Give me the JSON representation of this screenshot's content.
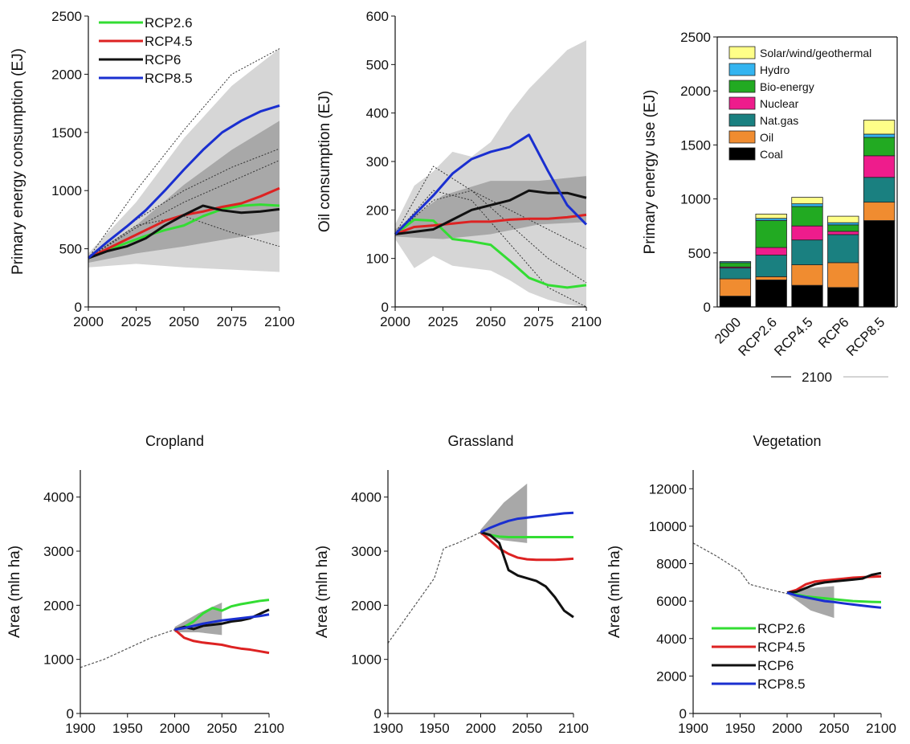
{
  "colors": {
    "RCP2.6": "#33dd33",
    "RCP4.5": "#dd2222",
    "RCP6": "#111111",
    "RCP8.5": "#1a2fd0",
    "band_light": "#d6d6d6",
    "band_dark": "#a8a8a8",
    "historical": "#555555"
  },
  "chart_data": [
    {
      "id": "primary_energy",
      "type": "line",
      "title": "",
      "xlabel": "",
      "ylabel": "Primary energy consumption (EJ)",
      "xlim": [
        2000,
        2100
      ],
      "ylim": [
        0,
        2500
      ],
      "xticks": [
        2000,
        2025,
        2050,
        2075,
        2100
      ],
      "yticks": [
        0,
        500,
        1000,
        1500,
        2000,
        2500
      ],
      "legend": "top-left",
      "series": [
        {
          "name": "RCP2.6",
          "x": [
            2000,
            2010,
            2020,
            2030,
            2040,
            2050,
            2060,
            2070,
            2080,
            2090,
            2100
          ],
          "y": [
            420,
            490,
            550,
            610,
            660,
            700,
            780,
            840,
            870,
            880,
            870
          ]
        },
        {
          "name": "RCP4.5",
          "x": [
            2000,
            2010,
            2020,
            2030,
            2040,
            2050,
            2060,
            2070,
            2080,
            2090,
            2100
          ],
          "y": [
            420,
            500,
            580,
            660,
            740,
            790,
            820,
            860,
            890,
            950,
            1020
          ]
        },
        {
          "name": "RCP6",
          "x": [
            2000,
            2010,
            2020,
            2030,
            2040,
            2050,
            2060,
            2070,
            2080,
            2090,
            2100
          ],
          "y": [
            420,
            480,
            520,
            590,
            700,
            790,
            870,
            830,
            810,
            820,
            840
          ]
        },
        {
          "name": "RCP8.5",
          "x": [
            2000,
            2010,
            2020,
            2030,
            2040,
            2050,
            2060,
            2070,
            2080,
            2090,
            2100
          ],
          "y": [
            420,
            560,
            690,
            830,
            1000,
            1180,
            1350,
            1500,
            1600,
            1680,
            1730
          ]
        }
      ],
      "band_light": {
        "x": [
          2000,
          2025,
          2050,
          2075,
          2100
        ],
        "lower": [
          340,
          370,
          340,
          320,
          300
        ],
        "upper": [
          460,
          900,
          1450,
          1900,
          2220
        ]
      },
      "band_dark": {
        "x": [
          2000,
          2025,
          2050,
          2075,
          2100
        ],
        "lower": [
          380,
          460,
          520,
          590,
          650
        ],
        "upper": [
          440,
          700,
          1050,
          1350,
          1600
        ]
      },
      "dotted": [
        {
          "x": [
            2000,
            2025,
            2050,
            2075,
            2100
          ],
          "y": [
            420,
            1000,
            1520,
            2000,
            2220
          ]
        },
        {
          "x": [
            2000,
            2025,
            2050,
            2075,
            2100
          ],
          "y": [
            420,
            750,
            1000,
            1200,
            1360
          ]
        },
        {
          "x": [
            2000,
            2025,
            2050,
            2075,
            2100
          ],
          "y": [
            420,
            700,
            780,
            640,
            520
          ]
        },
        {
          "x": [
            2000,
            2025,
            2050,
            2075,
            2100
          ],
          "y": [
            420,
            680,
            900,
            1080,
            1260
          ]
        }
      ]
    },
    {
      "id": "oil",
      "type": "line",
      "title": "",
      "xlabel": "",
      "ylabel": "Oil consumption (EJ)",
      "xlim": [
        2000,
        2100
      ],
      "ylim": [
        0,
        600
      ],
      "xticks": [
        2000,
        2025,
        2050,
        2075,
        2100
      ],
      "yticks": [
        0,
        100,
        200,
        300,
        400,
        500,
        600
      ],
      "series": [
        {
          "name": "RCP2.6",
          "x": [
            2000,
            2010,
            2020,
            2030,
            2040,
            2050,
            2060,
            2070,
            2080,
            2090,
            2100
          ],
          "y": [
            150,
            180,
            178,
            140,
            135,
            128,
            95,
            60,
            45,
            40,
            45
          ]
        },
        {
          "name": "RCP4.5",
          "x": [
            2000,
            2010,
            2020,
            2030,
            2040,
            2050,
            2060,
            2070,
            2080,
            2090,
            2100
          ],
          "y": [
            150,
            165,
            168,
            172,
            176,
            176,
            180,
            182,
            182,
            185,
            190
          ]
        },
        {
          "name": "RCP6",
          "x": [
            2000,
            2010,
            2020,
            2030,
            2040,
            2050,
            2060,
            2070,
            2080,
            2090,
            2100
          ],
          "y": [
            150,
            155,
            160,
            180,
            200,
            210,
            220,
            240,
            235,
            235,
            225
          ]
        },
        {
          "name": "RCP8.5",
          "x": [
            2000,
            2010,
            2020,
            2030,
            2040,
            2050,
            2060,
            2070,
            2080,
            2090,
            2100
          ],
          "y": [
            150,
            190,
            230,
            275,
            305,
            320,
            330,
            355,
            280,
            210,
            170
          ]
        }
      ],
      "band_light": {
        "x": [
          2000,
          2010,
          2020,
          2030,
          2040,
          2050,
          2060,
          2070,
          2080,
          2090,
          2100
        ],
        "lower": [
          140,
          80,
          105,
          85,
          80,
          75,
          55,
          30,
          15,
          5,
          0
        ],
        "upper": [
          170,
          250,
          280,
          320,
          310,
          340,
          400,
          450,
          490,
          530,
          550
        ]
      },
      "band_dark": {
        "x": [
          2000,
          2025,
          2050,
          2075,
          2100
        ],
        "lower": [
          145,
          140,
          150,
          170,
          175
        ],
        "upper": [
          160,
          230,
          260,
          260,
          270
        ]
      },
      "dotted": [
        {
          "x": [
            2000,
            2020,
            2040,
            2060,
            2080,
            2100
          ],
          "y": [
            150,
            290,
            240,
            170,
            100,
            50
          ]
        },
        {
          "x": [
            2000,
            2020,
            2040,
            2060,
            2080,
            2100
          ],
          "y": [
            150,
            240,
            220,
            130,
            40,
            0
          ]
        },
        {
          "x": [
            2000,
            2020,
            2040,
            2060,
            2080,
            2100
          ],
          "y": [
            150,
            220,
            240,
            200,
            160,
            120
          ]
        }
      ]
    },
    {
      "id": "primary_energy_mix",
      "type": "bar",
      "stacked": true,
      "title": "",
      "xlabel": "2100",
      "ylabel": "Primary energy use (EJ)",
      "ylim": [
        0,
        2500
      ],
      "yticks": [
        0,
        500,
        1000,
        1500,
        2000,
        2500
      ],
      "categories": [
        "2000",
        "RCP2.6",
        "RCP4.5",
        "RCP6",
        "RCP8.5"
      ],
      "legend": "top-right",
      "series": [
        {
          "name": "Coal",
          "color": "#000000",
          "values": [
            100,
            250,
            200,
            180,
            800
          ]
        },
        {
          "name": "Oil",
          "color": "#f08c30",
          "values": [
            160,
            30,
            190,
            230,
            170
          ]
        },
        {
          "name": "Nat.gas",
          "color": "#1a8080",
          "values": [
            100,
            200,
            230,
            260,
            230
          ]
        },
        {
          "name": "Nuclear",
          "color": "#ee1c8c",
          "values": [
            10,
            70,
            130,
            30,
            200
          ]
        },
        {
          "name": "Bio-energy",
          "color": "#22aa22",
          "values": [
            40,
            250,
            180,
            60,
            170
          ]
        },
        {
          "name": "Hydro",
          "color": "#33b4f0",
          "values": [
            10,
            20,
            25,
            20,
            30
          ]
        },
        {
          "name": "Solar/wind/geothermal",
          "color": "#ffff88",
          "values": [
            0,
            40,
            60,
            60,
            130
          ]
        }
      ]
    },
    {
      "id": "cropland",
      "type": "line",
      "title": "Cropland",
      "xlabel": "",
      "ylabel": "Area (mln ha)",
      "xlim": [
        1900,
        2100
      ],
      "ylim": [
        0,
        4500
      ],
      "xticks": [
        1900,
        1950,
        2000,
        2050,
        2100
      ],
      "yticks": [
        0,
        1000,
        2000,
        3000,
        4000
      ],
      "historical": {
        "x": [
          1900,
          1925,
          1950,
          1975,
          2000
        ],
        "y": [
          850,
          1000,
          1200,
          1400,
          1550
        ]
      },
      "series": [
        {
          "name": "RCP2.6",
          "x": [
            2000,
            2010,
            2020,
            2030,
            2040,
            2050,
            2060,
            2070,
            2080,
            2090,
            2100
          ],
          "y": [
            1550,
            1600,
            1700,
            1850,
            1950,
            1900,
            1980,
            2020,
            2050,
            2080,
            2100
          ]
        },
        {
          "name": "RCP4.5",
          "x": [
            2000,
            2010,
            2020,
            2030,
            2040,
            2050,
            2060,
            2070,
            2080,
            2090,
            2100
          ],
          "y": [
            1550,
            1400,
            1340,
            1310,
            1290,
            1270,
            1230,
            1200,
            1180,
            1150,
            1120
          ]
        },
        {
          "name": "RCP6",
          "x": [
            2000,
            2010,
            2020,
            2030,
            2040,
            2050,
            2060,
            2070,
            2080,
            2090,
            2100
          ],
          "y": [
            1550,
            1600,
            1560,
            1620,
            1640,
            1660,
            1700,
            1720,
            1760,
            1840,
            1920
          ]
        },
        {
          "name": "RCP8.5",
          "x": [
            2000,
            2010,
            2020,
            2030,
            2040,
            2050,
            2060,
            2070,
            2080,
            2090,
            2100
          ],
          "y": [
            1550,
            1580,
            1620,
            1660,
            1690,
            1720,
            1740,
            1760,
            1780,
            1800,
            1830
          ]
        }
      ],
      "band": {
        "x": [
          2000,
          2025,
          2050
        ],
        "lower": [
          1500,
          1500,
          1450
        ],
        "upper": [
          1600,
          1850,
          2050
        ]
      }
    },
    {
      "id": "grassland",
      "type": "line",
      "title": "Grassland",
      "xlabel": "",
      "ylabel": "Area (mln ha)",
      "xlim": [
        1900,
        2100
      ],
      "ylim": [
        0,
        4500
      ],
      "xticks": [
        1900,
        1950,
        2000,
        2050,
        2100
      ],
      "yticks": [
        0,
        1000,
        2000,
        3000,
        4000
      ],
      "historical": {
        "x": [
          1900,
          1925,
          1950,
          1960,
          1975,
          2000
        ],
        "y": [
          1300,
          1900,
          2500,
          3050,
          3150,
          3350
        ]
      },
      "series": [
        {
          "name": "RCP2.6",
          "x": [
            2000,
            2010,
            2020,
            2030,
            2040,
            2050,
            2060,
            2070,
            2080,
            2090,
            2100
          ],
          "y": [
            3350,
            3300,
            3270,
            3260,
            3260,
            3260,
            3260,
            3260,
            3260,
            3260,
            3260
          ]
        },
        {
          "name": "RCP4.5",
          "x": [
            2000,
            2010,
            2020,
            2030,
            2040,
            2050,
            2060,
            2070,
            2080,
            2090,
            2100
          ],
          "y": [
            3350,
            3200,
            3050,
            2950,
            2880,
            2850,
            2840,
            2840,
            2840,
            2850,
            2860
          ]
        },
        {
          "name": "RCP6",
          "x": [
            2000,
            2010,
            2020,
            2030,
            2040,
            2050,
            2060,
            2070,
            2080,
            2090,
            2100
          ],
          "y": [
            3350,
            3300,
            3150,
            2650,
            2550,
            2500,
            2450,
            2350,
            2150,
            1900,
            1780
          ]
        },
        {
          "name": "RCP8.5",
          "x": [
            2000,
            2010,
            2020,
            2030,
            2040,
            2050,
            2060,
            2070,
            2080,
            2090,
            2100
          ],
          "y": [
            3350,
            3430,
            3500,
            3560,
            3600,
            3620,
            3640,
            3660,
            3680,
            3700,
            3710
          ]
        }
      ],
      "band": {
        "x": [
          2000,
          2025,
          2050
        ],
        "lower": [
          3300,
          3200,
          3150
        ],
        "upper": [
          3400,
          3900,
          4250
        ]
      }
    },
    {
      "id": "vegetation",
      "type": "line",
      "title": "Vegetation",
      "xlabel": "",
      "ylabel": "Area (mln ha)",
      "xlim": [
        1900,
        2100
      ],
      "ylim": [
        0,
        13000
      ],
      "xticks": [
        1900,
        1950,
        2000,
        2050,
        2100
      ],
      "yticks": [
        0,
        2000,
        4000,
        6000,
        8000,
        10000,
        12000
      ],
      "legend": "lower-left",
      "historical": {
        "x": [
          1900,
          1925,
          1950,
          1960,
          1975,
          2000
        ],
        "y": [
          9100,
          8400,
          7600,
          6900,
          6700,
          6400
        ]
      },
      "series": [
        {
          "name": "RCP2.6",
          "x": [
            2000,
            2010,
            2020,
            2030,
            2040,
            2050,
            2060,
            2070,
            2080,
            2090,
            2100
          ],
          "y": [
            6450,
            6350,
            6250,
            6200,
            6150,
            6100,
            6050,
            6000,
            5980,
            5960,
            5950
          ]
        },
        {
          "name": "RCP4.5",
          "x": [
            2000,
            2010,
            2020,
            2030,
            2040,
            2050,
            2060,
            2070,
            2080,
            2090,
            2100
          ],
          "y": [
            6450,
            6600,
            6900,
            7050,
            7100,
            7150,
            7200,
            7250,
            7280,
            7300,
            7320
          ]
        },
        {
          "name": "RCP6",
          "x": [
            2000,
            2010,
            2020,
            2030,
            2040,
            2050,
            2060,
            2070,
            2080,
            2090,
            2100
          ],
          "y": [
            6450,
            6500,
            6700,
            6900,
            7000,
            7050,
            7100,
            7150,
            7200,
            7400,
            7500
          ]
        },
        {
          "name": "RCP8.5",
          "x": [
            2000,
            2010,
            2020,
            2030,
            2040,
            2050,
            2060,
            2070,
            2080,
            2090,
            2100
          ],
          "y": [
            6450,
            6300,
            6200,
            6100,
            6000,
            5950,
            5880,
            5820,
            5760,
            5700,
            5650
          ]
        }
      ],
      "band": {
        "x": [
          2000,
          2025,
          2050
        ],
        "lower": [
          6400,
          5500,
          5100
        ],
        "upper": [
          6500,
          6700,
          6800
        ]
      }
    }
  ]
}
